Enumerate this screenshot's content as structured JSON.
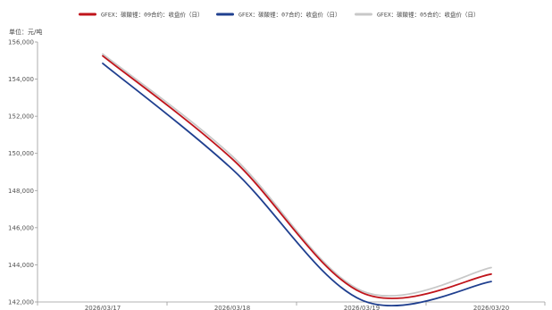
{
  "chart_data": {
    "type": "line",
    "unit_label": "单位：元/吨",
    "x": [
      "2026/03/17",
      "2026/03/18",
      "2026/03/19",
      "2026/03/20"
    ],
    "ylim": [
      142000,
      156000
    ],
    "yticks": [
      142000,
      144000,
      146000,
      148000,
      150000,
      152000,
      154000,
      156000
    ],
    "ytick_labels": [
      "142,000",
      "144,000",
      "146,000",
      "148,000",
      "150,000",
      "152,000",
      "154,000",
      "156,000"
    ],
    "grid": false,
    "legend_position": "top",
    "series": [
      {
        "name": "GFEX：碳酸锂：09合约：收盘价（日）",
        "color": "#c0141b",
        "values": [
          155250,
          149700,
          142500,
          143500
        ]
      },
      {
        "name": "GFEX：碳酸锂：07合约：收盘价（日）",
        "color": "#1f3f8f",
        "values": [
          154850,
          149150,
          142100,
          143100
        ]
      },
      {
        "name": "GFEX：碳酸锂：05合约：收盘价（日）",
        "color": "#c8c8c8",
        "values": [
          155350,
          149850,
          142600,
          143850
        ]
      }
    ]
  }
}
